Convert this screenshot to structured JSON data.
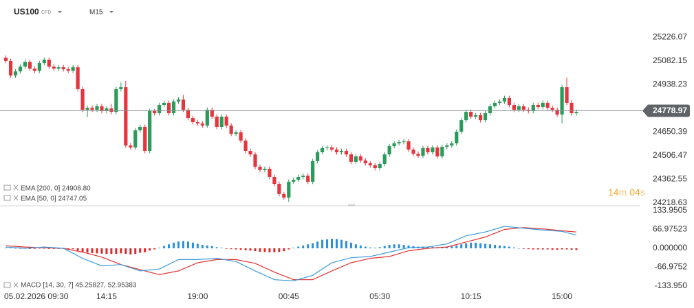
{
  "header": {
    "symbol": "US100",
    "market": "CFD",
    "timeframe": "M15"
  },
  "countdown": [
    "14",
    "m",
    "04",
    "s"
  ],
  "chart_data": [
    {
      "type": "candlestick",
      "indicators": [
        "EMA [200, 0]  24908.80",
        "EMA [50, 0]  24747.05"
      ],
      "up_color": "#2b9a5a",
      "down_color": "#e3363e",
      "current_price": 24778.97,
      "xlim": [
        -1.23,
        132.2
      ],
      "ylim": [
        24202,
        25418
      ],
      "yticks": [
        25226.07,
        25082.15,
        24938.23,
        24650.39,
        24506.47,
        24362.55,
        24218.63
      ],
      "open": [
        25101,
        25081,
        24993,
        25018,
        25047,
        25076,
        25035,
        25022,
        25068,
        25089,
        25047,
        25035,
        25043,
        25031,
        25022,
        25043,
        24910,
        24785,
        24797,
        24785,
        24806,
        24777,
        24793,
        24772,
        24910,
        24922,
        24568,
        24556,
        24660,
        24681,
        24535,
        24777,
        24764,
        24814,
        24827,
        24764,
        24835,
        24847,
        24785,
        24735,
        24710,
        24702,
        24689,
        24785,
        24743,
        24681,
        24743,
        24689,
        24639,
        24648,
        24598,
        24535,
        24514,
        24439,
        24419,
        24427,
        24377,
        24335,
        24273,
        24252,
        24348,
        24360,
        24377,
        24385,
        24348,
        24473,
        24527,
        24552,
        24556,
        24543,
        24527,
        24535,
        24514,
        24469,
        24502,
        24477,
        24460,
        24448,
        24431,
        24456,
        24514,
        24564,
        24581,
        24589,
        24593,
        24543,
        24518,
        24506,
        24552,
        24527,
        24556,
        24502,
        24560,
        24568,
        24581,
        24652,
        24722,
        24772,
        24743,
        24752,
        24722,
        24764,
        24806,
        24827,
        24835,
        24856,
        24814,
        24785,
        24806,
        24785,
        24777,
        24814,
        24802,
        24827,
        24797,
        24785,
        24756,
        24922,
        24827,
        24764
      ],
      "high": [
        25115,
        25095,
        25032,
        25061,
        25090,
        25090,
        25049,
        25082,
        25103,
        25103,
        25061,
        25057,
        25057,
        25045,
        25057,
        25057,
        24924,
        24811,
        24811,
        24820,
        24820,
        24807,
        24820,
        24924,
        24951,
        24960,
        24582,
        24674,
        24695,
        24695,
        24791,
        24791,
        24828,
        24841,
        24841,
        24849,
        24861,
        24875,
        24799,
        24749,
        24724,
        24716,
        24799,
        24799,
        24757,
        24757,
        24757,
        24703,
        24662,
        24662,
        24612,
        24549,
        24528,
        24453,
        24441,
        24441,
        24391,
        24349,
        24287,
        24362,
        24374,
        24391,
        24399,
        24399,
        24487,
        24541,
        24566,
        24570,
        24570,
        24557,
        24549,
        24549,
        24528,
        24516,
        24516,
        24491,
        24474,
        24462,
        24470,
        24528,
        24578,
        24595,
        24603,
        24607,
        24607,
        24557,
        24532,
        24566,
        24566,
        24570,
        24570,
        24574,
        24582,
        24595,
        24666,
        24736,
        24786,
        24786,
        24766,
        24766,
        24778,
        24820,
        24841,
        24849,
        24870,
        24870,
        24828,
        24820,
        24820,
        24799,
        24828,
        24828,
        24841,
        24841,
        24811,
        24799,
        24936,
        24981,
        24841,
        24786
      ],
      "low": [
        25067,
        24979,
        24979,
        25004,
        25033,
        25021,
        25008,
        25008,
        25054,
        25033,
        25021,
        25021,
        25017,
        25008,
        25008,
        24896,
        24771,
        24740,
        24771,
        24771,
        24763,
        24763,
        24758,
        24758,
        24896,
        24554,
        24542,
        24542,
        24646,
        24521,
        24521,
        24750,
        24750,
        24800,
        24750,
        24750,
        24821,
        24771,
        24721,
        24696,
        24688,
        24675,
        24675,
        24729,
        24667,
        24667,
        24675,
        24625,
        24625,
        24584,
        24521,
        24500,
        24425,
        24405,
        24405,
        24363,
        24321,
        24259,
        24238,
        24226,
        24334,
        24346,
        24363,
        24334,
        24334,
        24459,
        24513,
        24538,
        24529,
        24513,
        24513,
        24500,
        24455,
        24455,
        24463,
        24446,
        24434,
        24417,
        24417,
        24442,
        24500,
        24550,
        24567,
        24575,
        24529,
        24504,
        24492,
        24492,
        24513,
        24513,
        24488,
        24488,
        24546,
        24554,
        24567,
        24638,
        24708,
        24729,
        24729,
        24708,
        24708,
        24750,
        24792,
        24813,
        24821,
        24800,
        24771,
        24771,
        24771,
        24763,
        24763,
        24788,
        24788,
        24783,
        24771,
        24742,
        24702,
        24813,
        24750,
        24750
      ],
      "close": [
        25081,
        24993,
        25018,
        25047,
        25076,
        25035,
        25022,
        25068,
        25089,
        25047,
        25035,
        25043,
        25031,
        25022,
        25043,
        24910,
        24785,
        24797,
        24785,
        24806,
        24777,
        24793,
        24772,
        24910,
        24922,
        24568,
        24556,
        24660,
        24681,
        24535,
        24777,
        24764,
        24814,
        24827,
        24764,
        24835,
        24847,
        24785,
        24735,
        24710,
        24702,
        24689,
        24785,
        24743,
        24681,
        24743,
        24689,
        24639,
        24648,
        24598,
        24535,
        24514,
        24439,
        24419,
        24427,
        24377,
        24335,
        24273,
        24252,
        24348,
        24360,
        24377,
        24385,
        24348,
        24473,
        24527,
        24552,
        24556,
        24543,
        24527,
        24535,
        24514,
        24469,
        24502,
        24477,
        24460,
        24448,
        24431,
        24456,
        24514,
        24564,
        24581,
        24589,
        24593,
        24543,
        24518,
        24506,
        24552,
        24527,
        24556,
        24502,
        24560,
        24568,
        24581,
        24652,
        24722,
        24772,
        24743,
        24752,
        24722,
        24764,
        24806,
        24827,
        24835,
        24856,
        24814,
        24785,
        24806,
        24785,
        24777,
        24814,
        24802,
        24827,
        24797,
        24785,
        24756,
        24922,
        24827,
        24764,
        24772
      ]
    },
    {
      "type": "macd",
      "label": "MACD [14, 30, 7]  45.25827,  52.95383",
      "xlim": [
        -1.23,
        132.2
      ],
      "ylim": [
        -156,
        151
      ],
      "yticks": [
        133.9505,
        66.97523,
        {
          "value": 0,
          "label": "0.000000"
        },
        -66.9752,
        {
          "value": -133.95,
          "label": "-133.950"
        }
      ],
      "xticks": [
        {
          "value": 2,
          "label": "05.02.2026  09:30"
        },
        {
          "value": 21,
          "label": "14:15"
        },
        {
          "value": 40,
          "label": "19:00"
        },
        {
          "value": 59,
          "label": "00:45"
        },
        {
          "value": 78,
          "label": "05:30"
        },
        {
          "value": 97,
          "label": "10:15"
        },
        {
          "value": 116,
          "label": "15:00"
        }
      ],
      "histogram": {
        "up_color": "#2a8fd6",
        "down_color": "#d92b2b",
        "values": [
          2,
          1,
          0,
          -1,
          -1,
          -2,
          -2,
          -1,
          -1,
          -2,
          -2,
          -2,
          -2,
          -3,
          -3,
          -8,
          -12,
          -15,
          -17,
          -18,
          -19,
          -20,
          -20,
          -20,
          -18,
          -20,
          -22,
          -20,
          -16,
          -14,
          -8,
          -4,
          2,
          8,
          14,
          20,
          24,
          26,
          24,
          20,
          16,
          12,
          10,
          8,
          4,
          2,
          -2,
          -3,
          -4,
          -5,
          -7,
          -8,
          -10,
          -12,
          -13,
          -14,
          -14,
          -13,
          -10,
          -4,
          2,
          6,
          10,
          14,
          18,
          24,
          30,
          32,
          34,
          33,
          30,
          26,
          20,
          14,
          10,
          6,
          3,
          2,
          4,
          8,
          12,
          14,
          14,
          12,
          10,
          8,
          6,
          6,
          6,
          5,
          4,
          5,
          6,
          7,
          10,
          14,
          18,
          20,
          20,
          18,
          16,
          14,
          12,
          10,
          8,
          6,
          3,
          0,
          -2,
          -3,
          -4,
          -4,
          -4,
          -4,
          -5,
          -5,
          -4,
          -4,
          -5,
          -6
        ]
      },
      "macd": {
        "color": "#3a9ad9",
        "x": [
          0,
          4,
          8,
          12,
          16,
          20,
          24,
          28,
          32,
          36,
          40,
          44,
          48,
          52,
          56,
          60,
          64,
          68,
          72,
          76,
          80,
          84,
          88,
          92,
          96,
          100,
          104,
          108,
          112,
          116,
          119
        ],
        "values": [
          4.5,
          0,
          4.5,
          0,
          -35.7,
          -62.4,
          -57.9,
          -80.3,
          -73.6,
          -40.1,
          -40.1,
          -35.7,
          -46.8,
          -80.3,
          -111.5,
          -115.9,
          -95.8,
          -51.3,
          -33.5,
          -29,
          -13.4,
          2.2,
          4.5,
          15.6,
          44.6,
          57.9,
          78,
          71.4,
          64.7,
          60.2,
          46.8
        ]
      },
      "signal": {
        "color": "#e03030",
        "x": [
          0,
          4,
          8,
          12,
          16,
          20,
          24,
          28,
          32,
          36,
          40,
          44,
          48,
          52,
          56,
          60,
          64,
          68,
          72,
          76,
          80,
          84,
          88,
          92,
          96,
          100,
          104,
          108,
          112,
          116,
          119
        ],
        "values": [
          8.9,
          4.5,
          2.2,
          0,
          -13.4,
          -31.2,
          -57.9,
          -75.8,
          -93.7,
          -80.3,
          -51.3,
          -40.1,
          -40.1,
          -53.5,
          -84.7,
          -111.5,
          -111.5,
          -80.3,
          -51.3,
          -35.7,
          -29,
          -8.9,
          0,
          4.5,
          22.3,
          40.1,
          66.9,
          73.6,
          69,
          62.4,
          57.9
        ]
      }
    }
  ]
}
